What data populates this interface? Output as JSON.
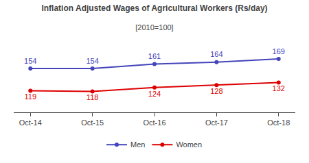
{
  "chart_data": {
    "type": "line",
    "title": "Inflation Adjusted Wages of Agricultural Workers (Rs/day)",
    "subtitle": "[2010=100]",
    "categories": [
      "Oct-14",
      "Oct-15",
      "Oct-16",
      "Oct-17",
      "Oct-18"
    ],
    "series": [
      {
        "name": "Men",
        "color": "#4444bb",
        "values": [
          154,
          154,
          161,
          164,
          169
        ]
      },
      {
        "name": "Women",
        "color": "#dd0000",
        "values": [
          119,
          118,
          124,
          128,
          132
        ]
      }
    ],
    "ylim": [
      85,
      195
    ],
    "grid": false,
    "legend": "bottom",
    "data_labels": true,
    "tick_labels": "x",
    "marker": "circle"
  }
}
